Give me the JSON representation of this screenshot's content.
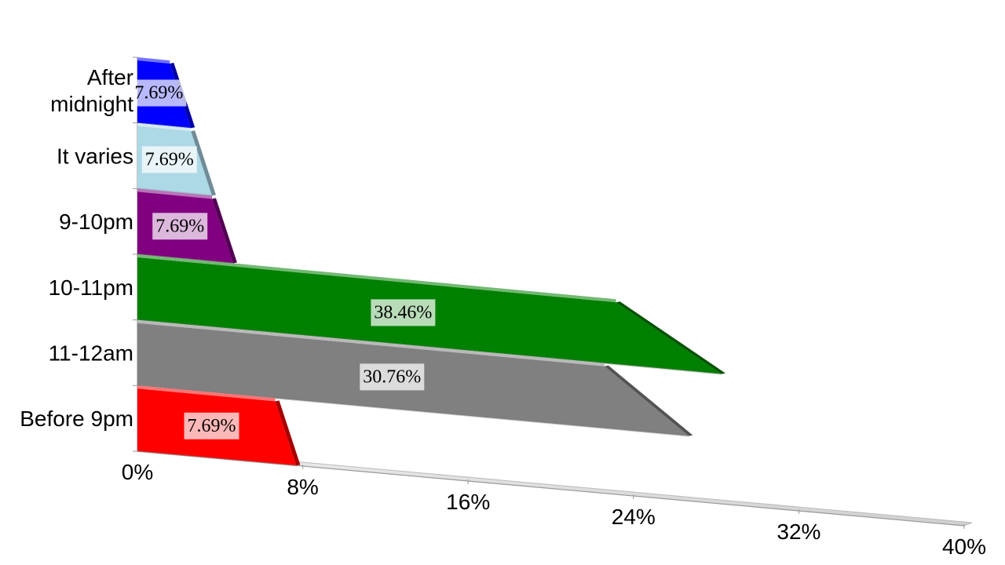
{
  "chart_data": {
    "type": "bar",
    "orientation": "horizontal",
    "style": "3d-perspective",
    "categories": [
      "Before 9pm",
      "11-12am",
      "10-11pm",
      "9-10pm",
      "It varies",
      "After midnight"
    ],
    "values": [
      7.69,
      30.76,
      38.46,
      7.69,
      7.69,
      7.69
    ],
    "data_labels": [
      "7.69%",
      "30.76%",
      "38.46%",
      "7.69%",
      "7.69%",
      "7.69%"
    ],
    "colors": [
      "#ff0000",
      "#808080",
      "#008000",
      "#800080",
      "#add8e6",
      "#0000ff"
    ],
    "x_ticks": [
      "0%",
      "8%",
      "16%",
      "24%",
      "32%",
      "40%"
    ],
    "xlim": [
      0,
      40
    ],
    "title": "",
    "xlabel": "",
    "ylabel": "",
    "grid": false,
    "legend": "none"
  }
}
